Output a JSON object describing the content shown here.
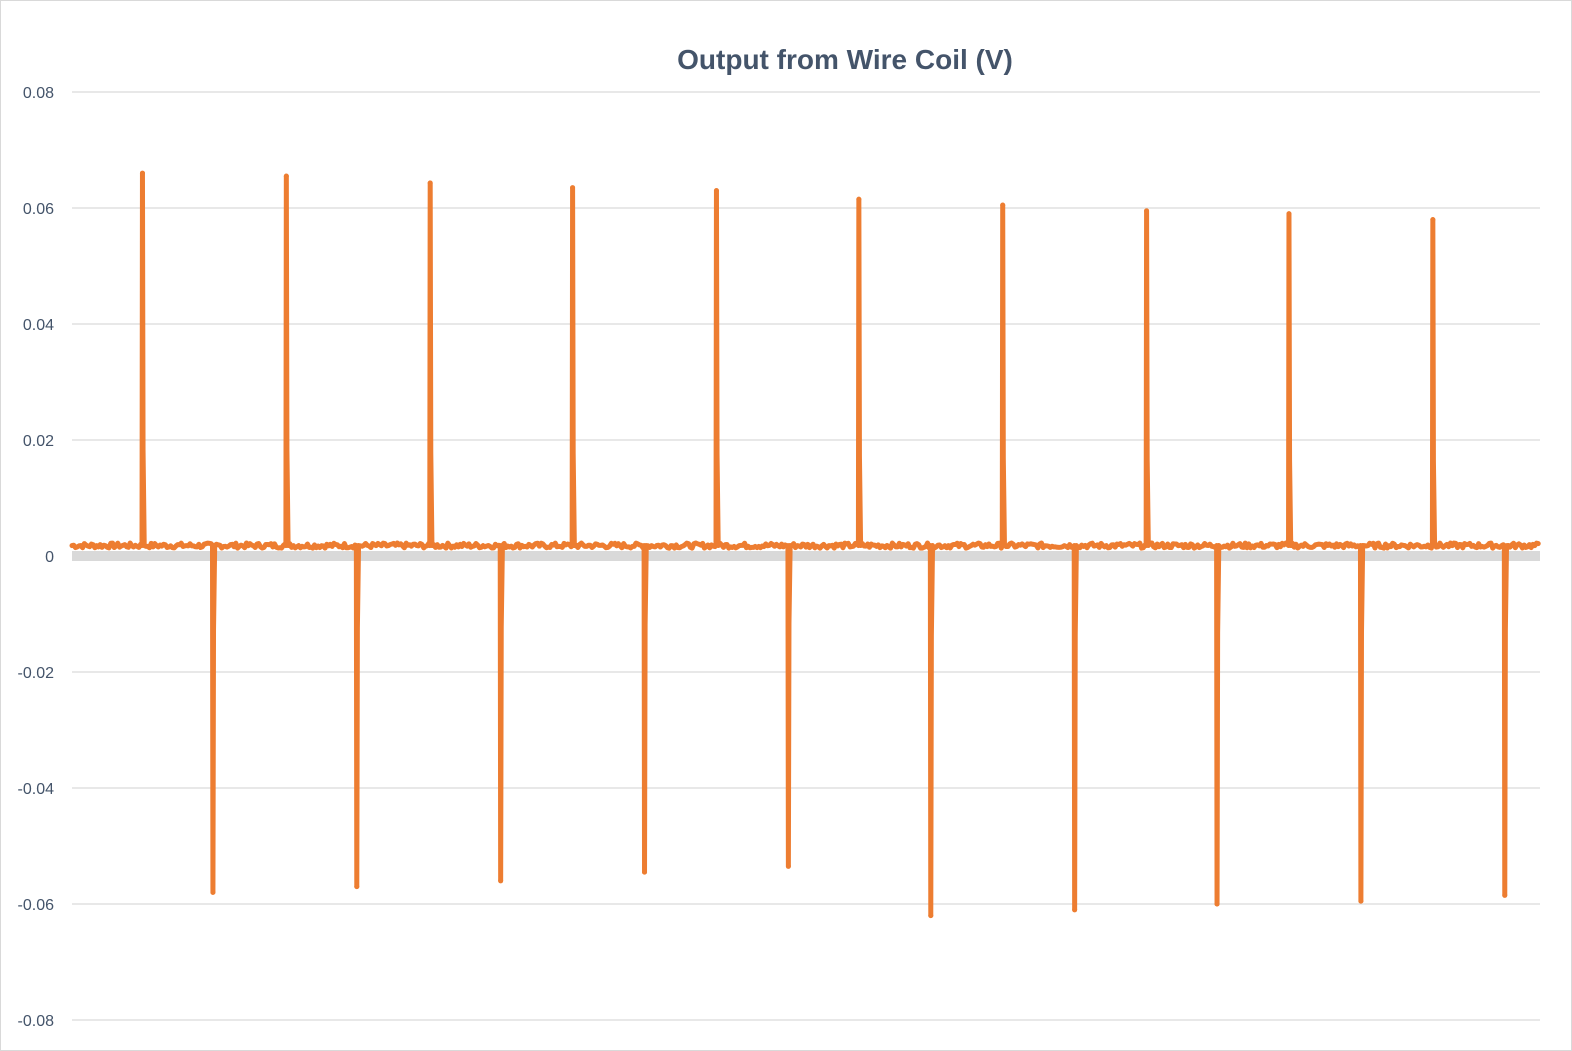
{
  "chart_data": {
    "type": "line",
    "title": "Output from Wire Coil (V)",
    "xlabel": "",
    "ylabel": "",
    "ylim": [
      -0.08,
      0.08
    ],
    "yticks": [
      0.08,
      0.06,
      0.04,
      0.02,
      0,
      -0.02,
      -0.04,
      -0.06,
      -0.08
    ],
    "ytick_labels": [
      "0.08",
      "0.06",
      "0.04",
      "0.02",
      "0",
      "-0.02",
      "-0.04",
      "-0.06",
      "-0.08"
    ],
    "grid": true,
    "legend": "none",
    "x_labels_visible": false,
    "x_range": [
      0,
      100
    ],
    "baseline": 0.0018,
    "series": [
      {
        "color": "#ed7d31",
        "positive_peaks": [
          {
            "x": 4.8,
            "y": 0.066
          },
          {
            "x": 14.6,
            "y": 0.0655
          },
          {
            "x": 24.4,
            "y": 0.0643
          },
          {
            "x": 34.1,
            "y": 0.0635
          },
          {
            "x": 43.9,
            "y": 0.063
          },
          {
            "x": 53.6,
            "y": 0.0615
          },
          {
            "x": 63.4,
            "y": 0.0605
          },
          {
            "x": 73.2,
            "y": 0.0595
          },
          {
            "x": 82.9,
            "y": 0.059
          },
          {
            "x": 92.7,
            "y": 0.058
          }
        ],
        "negative_peaks": [
          {
            "x": 9.6,
            "y": -0.058
          },
          {
            "x": 19.4,
            "y": -0.057
          },
          {
            "x": 29.2,
            "y": -0.056
          },
          {
            "x": 39.0,
            "y": -0.0545
          },
          {
            "x": 48.8,
            "y": -0.0535
          },
          {
            "x": 58.5,
            "y": -0.062
          },
          {
            "x": 68.3,
            "y": -0.061
          },
          {
            "x": 78.0,
            "y": -0.06
          },
          {
            "x": 87.8,
            "y": -0.0595
          },
          {
            "x": 97.6,
            "y": -0.0585
          }
        ]
      }
    ]
  }
}
